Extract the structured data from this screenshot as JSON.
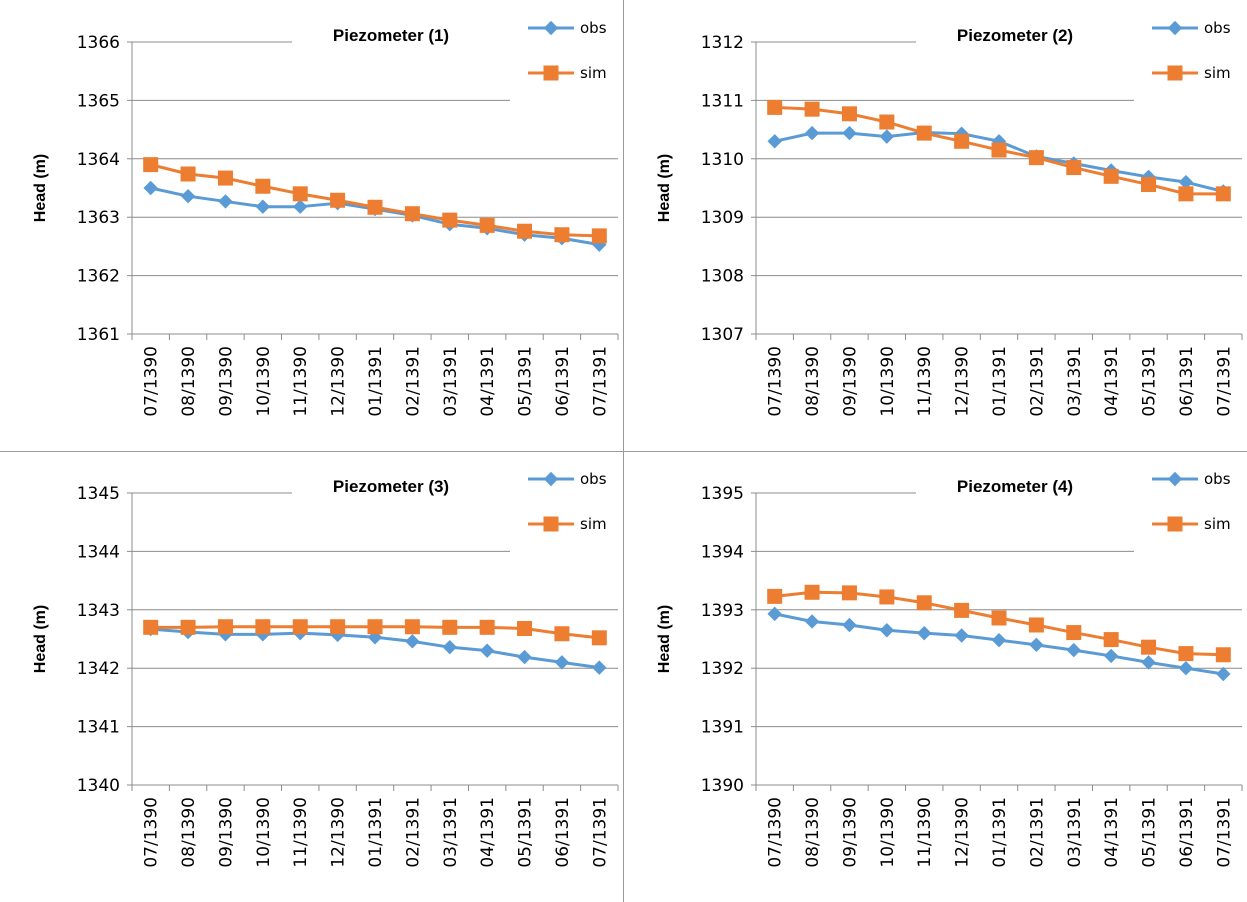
{
  "chart_data": [
    {
      "type": "line",
      "title": "Piezometer (1)",
      "xlabel": "",
      "ylabel": "Head (m)",
      "ylim": [
        1361,
        1366
      ],
      "y_ticks": [
        "1361",
        "1362",
        "1363",
        "1364",
        "1365",
        "1366"
      ],
      "grid": true,
      "legend_position": "top-right",
      "categories": [
        "07/1390",
        "08/1390",
        "09/1390",
        "10/1390",
        "11/1390",
        "12/1390",
        "01/1391",
        "02/1391",
        "03/1391",
        "04/1391",
        "05/1391",
        "06/1391",
        "07/1391"
      ],
      "series": [
        {
          "name": "obs",
          "marker": "diamond",
          "color": "#5B9BD5",
          "values": [
            1363.5,
            1363.36,
            1363.27,
            1363.18,
            1363.18,
            1363.24,
            1363.14,
            1363.03,
            1362.88,
            1362.81,
            1362.7,
            1362.64,
            1362.53
          ]
        },
        {
          "name": "sim",
          "marker": "square",
          "color": "#ED7D31",
          "values": [
            1363.9,
            1363.74,
            1363.67,
            1363.53,
            1363.4,
            1363.29,
            1363.17,
            1363.06,
            1362.95,
            1362.86,
            1362.76,
            1362.7,
            1362.68
          ]
        }
      ]
    },
    {
      "type": "line",
      "title": "Piezometer (2)",
      "xlabel": "",
      "ylabel": "Head (m)",
      "ylim": [
        1307,
        1312
      ],
      "y_ticks": [
        "1307",
        "1308",
        "1309",
        "1310",
        "1311",
        "1312"
      ],
      "grid": true,
      "legend_position": "top-right",
      "categories": [
        "07/1390",
        "08/1390",
        "09/1390",
        "10/1390",
        "11/1390",
        "12/1390",
        "01/1391",
        "02/1391",
        "03/1391",
        "04/1391",
        "05/1391",
        "06/1391",
        "07/1391"
      ],
      "series": [
        {
          "name": "obs",
          "marker": "diamond",
          "color": "#5B9BD5",
          "values": [
            1310.3,
            1310.44,
            1310.44,
            1310.38,
            1310.45,
            1310.43,
            1310.3,
            1310.04,
            1309.92,
            1309.8,
            1309.69,
            1309.6,
            1309.44
          ]
        },
        {
          "name": "sim",
          "marker": "square",
          "color": "#ED7D31",
          "values": [
            1310.88,
            1310.85,
            1310.77,
            1310.63,
            1310.44,
            1310.3,
            1310.15,
            1310.02,
            1309.85,
            1309.7,
            1309.56,
            1309.4,
            1309.4
          ]
        }
      ]
    },
    {
      "type": "line",
      "title": "Piezometer (3)",
      "xlabel": "",
      "ylabel": "Head (m)",
      "ylim": [
        1340,
        1345
      ],
      "y_ticks": [
        "1340",
        "1341",
        "1342",
        "1343",
        "1344",
        "1345"
      ],
      "grid": true,
      "legend_position": "top-right",
      "categories": [
        "07/1390",
        "08/1390",
        "09/1390",
        "10/1390",
        "11/1390",
        "12/1390",
        "01/1391",
        "02/1391",
        "03/1391",
        "04/1391",
        "05/1391",
        "06/1391",
        "07/1391"
      ],
      "series": [
        {
          "name": "obs",
          "marker": "diamond",
          "color": "#5B9BD5",
          "values": [
            1342.67,
            1342.62,
            1342.58,
            1342.58,
            1342.6,
            1342.57,
            1342.53,
            1342.46,
            1342.36,
            1342.3,
            1342.19,
            1342.1,
            1342.01
          ]
        },
        {
          "name": "sim",
          "marker": "square",
          "color": "#ED7D31",
          "values": [
            1342.7,
            1342.7,
            1342.71,
            1342.71,
            1342.71,
            1342.71,
            1342.71,
            1342.71,
            1342.7,
            1342.7,
            1342.68,
            1342.59,
            1342.52
          ]
        }
      ]
    },
    {
      "type": "line",
      "title": "Piezometer (4)",
      "xlabel": "",
      "ylabel": "Head (m)",
      "ylim": [
        1390,
        1395
      ],
      "y_ticks": [
        "1390",
        "1391",
        "1392",
        "1393",
        "1394",
        "1395"
      ],
      "grid": true,
      "legend_position": "top-right",
      "categories": [
        "07/1390",
        "08/1390",
        "09/1390",
        "10/1390",
        "11/1390",
        "12/1390",
        "01/1391",
        "02/1391",
        "03/1391",
        "04/1391",
        "05/1391",
        "06/1391",
        "07/1391"
      ],
      "series": [
        {
          "name": "obs",
          "marker": "diamond",
          "color": "#5B9BD5",
          "values": [
            1392.93,
            1392.8,
            1392.74,
            1392.65,
            1392.6,
            1392.56,
            1392.48,
            1392.4,
            1392.31,
            1392.21,
            1392.1,
            1392.0,
            1391.9
          ]
        },
        {
          "name": "sim",
          "marker": "square",
          "color": "#ED7D31",
          "values": [
            1393.23,
            1393.3,
            1393.29,
            1393.22,
            1393.12,
            1392.99,
            1392.86,
            1392.74,
            1392.61,
            1392.49,
            1392.36,
            1392.25,
            1392.23
          ]
        }
      ]
    }
  ]
}
